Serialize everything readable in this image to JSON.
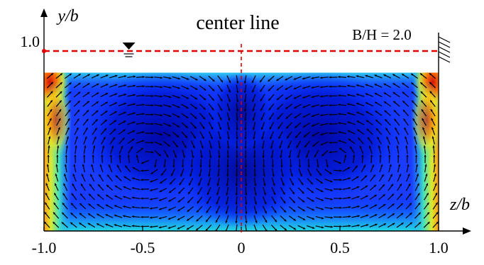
{
  "chart_data": {
    "type": "heatmap",
    "title": "center line",
    "xlabel": "z/b",
    "ylabel": "y/b",
    "annotation": "B/H = 2.0",
    "xlim": [
      -1.0,
      1.0
    ],
    "ylim": [
      0.0,
      1.0
    ],
    "x_ticks": [
      "-1.0",
      "-0.5",
      "0",
      "0.5",
      "1.0"
    ],
    "x_tick_values": [
      -1.0,
      -0.5,
      0.0,
      0.5,
      1.0
    ],
    "y_ticks": [
      "1.0"
    ],
    "y_tick_values": [
      1.0
    ],
    "water_surface_y": 1.0,
    "flow_region_top_y": 0.88,
    "center_line_z": 0.0,
    "colormap": "jet",
    "vectors": "secondary-flow-vectors",
    "colors": {
      "surface_line": "#e00000",
      "center_line": "#e00000",
      "arrows": "#000000"
    }
  }
}
